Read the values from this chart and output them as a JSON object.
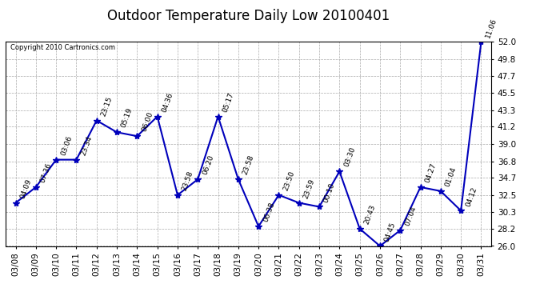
{
  "title": "Outdoor Temperature Daily Low 20100401",
  "copyright": "Copyright 2010 Cartronics.com",
  "x_labels": [
    "03/08",
    "03/09",
    "03/10",
    "03/11",
    "03/12",
    "03/13",
    "03/14",
    "03/15",
    "03/16",
    "03/17",
    "03/18",
    "03/19",
    "03/20",
    "03/21",
    "03/22",
    "03/23",
    "03/24",
    "03/25",
    "03/26",
    "03/27",
    "03/28",
    "03/29",
    "03/30",
    "03/31"
  ],
  "y_values": [
    31.5,
    33.5,
    37.0,
    37.0,
    42.0,
    40.5,
    40.0,
    42.5,
    32.5,
    34.5,
    42.5,
    34.5,
    28.5,
    32.5,
    31.5,
    31.0,
    35.5,
    28.2,
    26.0,
    28.0,
    33.5,
    33.0,
    30.5,
    52.0
  ],
  "time_labels": [
    "04:09",
    "07:36",
    "03:06",
    "23:34",
    "23:15",
    "05:19",
    "06:00",
    "04:36",
    "23:58",
    "06:20",
    "05:17",
    "23:58",
    "06:38",
    "23:50",
    "23:59",
    "00:10",
    "03:30",
    "20:43",
    "04:45",
    "07:04",
    "04:27",
    "01:04",
    "04:12",
    "11:06"
  ],
  "y_min": 26.0,
  "y_max": 52.0,
  "y_ticks": [
    26.0,
    28.2,
    30.3,
    32.5,
    34.7,
    36.8,
    39.0,
    41.2,
    43.3,
    45.5,
    47.7,
    49.8,
    52.0
  ],
  "line_color": "#0000bb",
  "marker_color": "#0000bb",
  "bg_color": "#ffffff",
  "grid_color": "#aaaaaa",
  "title_fontsize": 12,
  "tick_fontsize": 7.5,
  "annot_fontsize": 6.5
}
